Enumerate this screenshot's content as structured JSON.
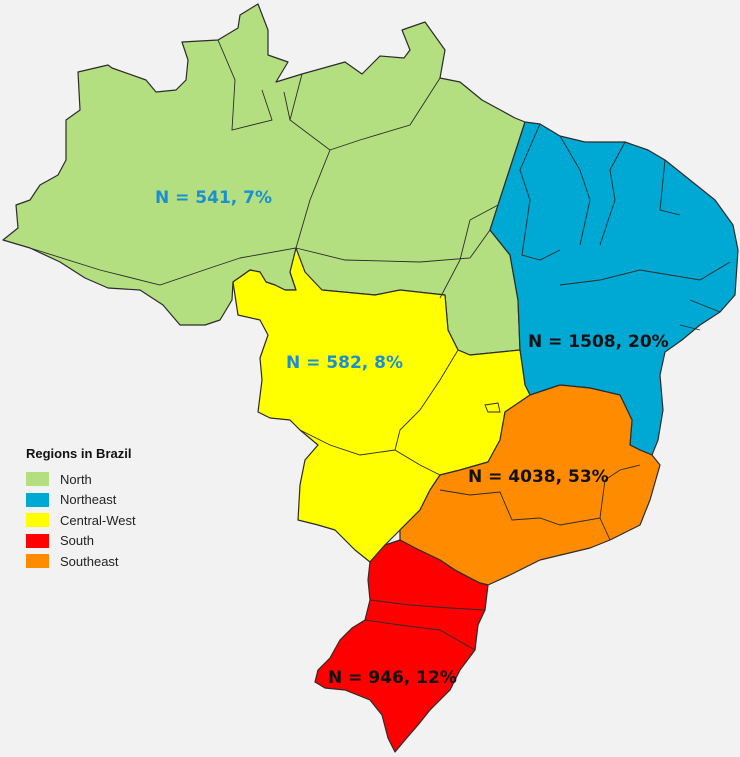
{
  "legend": {
    "title": "Regions in Brazil",
    "items": [
      {
        "id": "north",
        "label": "North",
        "color": "#b3df80"
      },
      {
        "id": "northeast",
        "label": "Northeast",
        "color": "#00a8d4"
      },
      {
        "id": "centralwest",
        "label": "Central-West",
        "color": "#ffff00"
      },
      {
        "id": "south",
        "label": "South",
        "color": "#ff0000"
      },
      {
        "id": "southeast",
        "label": "Southeast",
        "color": "#ff8c00"
      }
    ]
  },
  "annotations": {
    "north": {
      "text": "N = 541, 7%",
      "color": "#1b8fd1"
    },
    "centralwest": {
      "text": "N = 582, 8%",
      "color": "#1b8fd1"
    },
    "northeast": {
      "text": "N = 1508, 20%",
      "color": "#111111"
    },
    "southeast": {
      "text": "N = 4038, 53%",
      "color": "#111111"
    },
    "south": {
      "text": "N = 946, 12%",
      "color": "#111111"
    }
  },
  "chart_data": {
    "type": "choropleth",
    "regions": [
      {
        "name": "North",
        "n": 541,
        "percent": 7
      },
      {
        "name": "Northeast",
        "n": 1508,
        "percent": 20
      },
      {
        "name": "Central-West",
        "n": 582,
        "percent": 8
      },
      {
        "name": "Southeast",
        "n": 4038,
        "percent": 53
      },
      {
        "name": "South",
        "n": 946,
        "percent": 12
      }
    ]
  }
}
